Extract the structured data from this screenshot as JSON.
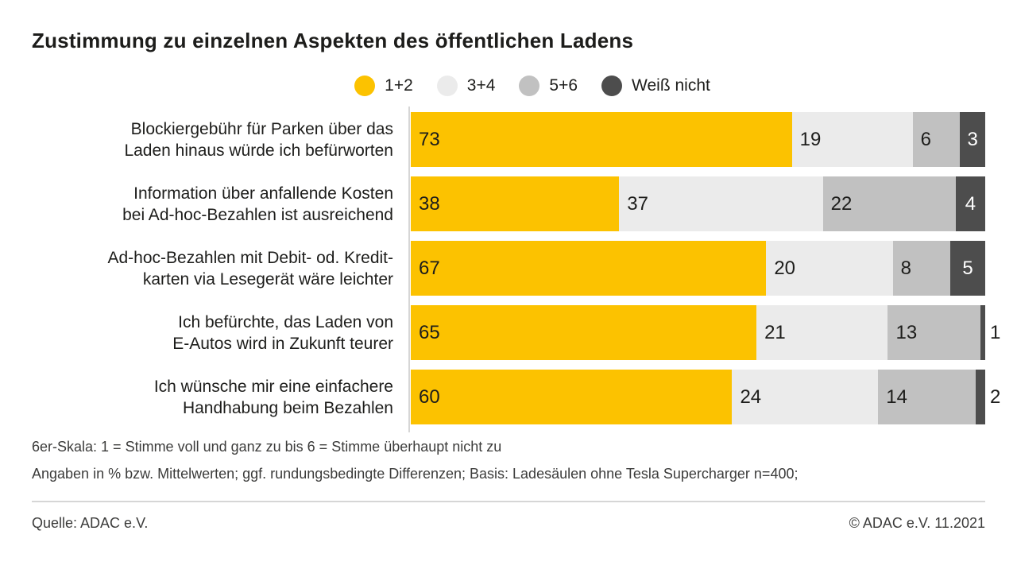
{
  "title": "Zustimmung zu einzelnen Aspekten des öffentlichen Ladens",
  "chart_data": {
    "type": "bar",
    "orientation": "horizontal",
    "stacked": true,
    "unit": "%",
    "xlim": [
      0,
      100
    ],
    "grid": false,
    "legend_position": "top-center",
    "series": [
      {
        "name": "1+2",
        "color": "#fcc200"
      },
      {
        "name": "3+4",
        "color": "#ebebeb"
      },
      {
        "name": "5+6",
        "color": "#c1c1c1"
      },
      {
        "name": "Weiß nicht",
        "color": "#4d4d4d"
      }
    ],
    "rows": [
      {
        "label_line1": "Blockiergebühr für Parken über das",
        "label_line2": "Laden hinaus würde ich befürworten",
        "values": [
          73,
          19,
          6,
          3
        ]
      },
      {
        "label_line1": "Information über anfallende Kosten",
        "label_line2": "bei Ad-hoc-Bezahlen ist ausreichend",
        "values": [
          38,
          37,
          22,
          4
        ]
      },
      {
        "label_line1": "Ad-hoc-Bezahlen mit Debit- od. Kredit-",
        "label_line2": "karten via Lesegerät wäre leichter",
        "values": [
          67,
          20,
          8,
          5
        ]
      },
      {
        "label_line1": "Ich befürchte, das Laden von",
        "label_line2": "E-Autos wird in Zukunft teurer",
        "values": [
          65,
          21,
          13,
          1
        ]
      },
      {
        "label_line1": "Ich wünsche mir eine einfachere",
        "label_line2": "Handhabung beim Bezahlen",
        "values": [
          60,
          24,
          14,
          2
        ]
      }
    ]
  },
  "footnotes": {
    "line1": "6er-Skala: 1 = Stimme voll und ganz zu bis 6 = Stimme überhaupt nicht zu",
    "line2": "Angaben in % bzw. Mittelwerten; ggf. rundungsbedingte Differenzen; Basis: Ladesäulen ohne Tesla Supercharger n=400;"
  },
  "source": {
    "left": "Quelle: ADAC e.V.",
    "right": "© ADAC e.V. 11.2021"
  }
}
